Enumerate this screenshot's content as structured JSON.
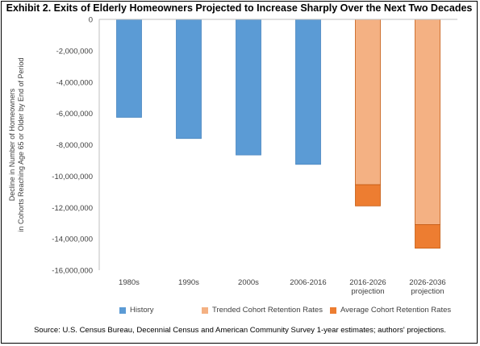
{
  "title": "Exhibit 2. Exits of Elderly Homeowners Projected to Increase Sharply Over the Next Two Decades",
  "source": "Source: U.S. Census Bureau, Decennial Census and American Community Survey 1-year estimates; authors' projections.",
  "chart_data": {
    "type": "bar",
    "stacked": true,
    "title": "Exhibit 2. Exits of Elderly Homeowners Projected to Increase Sharply Over the Next Two Decades",
    "categories": [
      [
        "1980s"
      ],
      [
        "1990s"
      ],
      [
        "2000s"
      ],
      [
        "2006-2016"
      ],
      [
        "2016-2026",
        "projection"
      ],
      [
        "2026-2036",
        "projection"
      ]
    ],
    "ylabel": [
      "Decline in Number of Homeowners",
      "in Cohorts Reaching Age 65 or Older by End of Period"
    ],
    "xlabel": "",
    "ylim": [
      -16000000,
      0
    ],
    "yticks": [
      0,
      -2000000,
      -4000000,
      -6000000,
      -8000000,
      -10000000,
      -12000000,
      -14000000,
      -16000000
    ],
    "ytick_labels": [
      "0",
      "-2,000,000",
      "-4,000,000",
      "-6,000,000",
      "-8,000,000",
      "-10,000,000",
      "-12,000,000",
      "-14,000,000",
      "-16,000,000"
    ],
    "grid": false,
    "legend_position": "bottom",
    "series": [
      {
        "name": "History",
        "color": "#5B9BD5",
        "stroke": "#4A86C0",
        "values": [
          -6250000,
          -7600000,
          -8650000,
          -9250000,
          null,
          null
        ]
      },
      {
        "name": "Trended Cohort Retention Rates",
        "color": "#F4B183",
        "stroke": "#C55A11",
        "values": [
          null,
          null,
          null,
          null,
          -10550000,
          -13100000
        ]
      },
      {
        "name": "Average Cohort Retention Rates",
        "color": "#ED7D31",
        "stroke": "#C55A11",
        "values": [
          null,
          null,
          null,
          null,
          -1350000,
          -1500000
        ]
      }
    ]
  }
}
